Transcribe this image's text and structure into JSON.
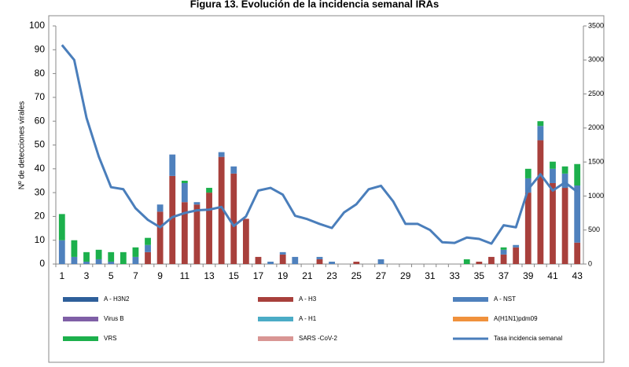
{
  "chart_data": {
    "type": "bar",
    "title": "Figura 13. Evolución de la incidencia semanal IRAs",
    "ylabel": "Nº de detecciones virales",
    "categories": [
      1,
      null,
      3,
      null,
      5,
      null,
      7,
      null,
      9,
      null,
      11,
      null,
      13,
      null,
      15,
      null,
      17,
      null,
      19,
      null,
      21,
      null,
      23,
      null,
      25,
      null,
      27,
      null,
      29,
      null,
      31,
      null,
      33,
      null,
      35,
      null,
      37,
      null,
      39,
      null,
      41,
      null,
      43
    ],
    "ylim": [
      0,
      100
    ],
    "yticks": [
      0,
      10,
      20,
      30,
      40,
      50,
      60,
      70,
      80,
      90,
      100
    ],
    "y2lim": [
      0,
      3500
    ],
    "y2ticks": [
      0,
      500,
      1000,
      1500,
      2000,
      2500,
      3000,
      3500
    ],
    "stacked": true,
    "series": [
      {
        "name": "A - H3N2",
        "color": "#2e5f9a",
        "values": [
          0,
          0,
          0,
          0,
          0,
          0,
          0,
          0,
          0,
          0,
          0,
          0,
          0,
          0,
          0,
          0,
          0,
          0,
          0,
          0,
          0,
          0,
          0,
          0,
          0,
          0,
          0,
          0,
          0,
          0,
          0,
          0,
          0,
          0,
          0,
          0,
          0,
          0,
          0,
          0,
          0,
          0,
          0
        ]
      },
      {
        "name": "A - H3",
        "color": "#a8403c",
        "values": [
          0,
          0,
          0,
          0,
          0,
          0,
          0,
          5,
          22,
          37,
          26,
          25,
          30,
          45,
          38,
          19,
          3,
          0,
          4,
          0,
          0,
          2,
          0,
          0,
          1,
          0,
          0,
          0,
          0,
          0,
          0,
          0,
          0,
          0,
          1,
          3,
          4,
          7,
          30,
          52,
          34,
          32,
          9
        ]
      },
      {
        "name": "A - NST",
        "color": "#4f81bd",
        "values": [
          10,
          3,
          1,
          2,
          1,
          0,
          3,
          3,
          3,
          9,
          8,
          1,
          0,
          2,
          3,
          0,
          0,
          1,
          1,
          3,
          0,
          1,
          1,
          0,
          0,
          0,
          2,
          0,
          0,
          0,
          0,
          0,
          0,
          0,
          0,
          0,
          2,
          1,
          6,
          6,
          6,
          6,
          24
        ]
      },
      {
        "name": "Virus B",
        "color": "#7f5fa6",
        "values": [
          0,
          0,
          0,
          0,
          0,
          0,
          0,
          0,
          0,
          0,
          0,
          0,
          0,
          0,
          0,
          0,
          0,
          0,
          0,
          0,
          0,
          0,
          0,
          0,
          0,
          0,
          0,
          0,
          0,
          0,
          0,
          0,
          0,
          0,
          0,
          0,
          0,
          0,
          0,
          0,
          0,
          0,
          0
        ]
      },
      {
        "name": "A - H1",
        "color": "#4bacc6",
        "values": [
          0,
          0,
          0,
          0,
          0,
          0,
          0,
          0,
          0,
          0,
          0,
          0,
          0,
          0,
          0,
          0,
          0,
          0,
          0,
          0,
          0,
          0,
          0,
          0,
          0,
          0,
          0,
          0,
          0,
          0,
          0,
          0,
          0,
          0,
          0,
          0,
          0,
          0,
          0,
          0,
          0,
          0,
          0
        ]
      },
      {
        "name": "A(H1N1)pdm09",
        "color": "#f0913c",
        "values": [
          0,
          0,
          0,
          0,
          0,
          0,
          0,
          0,
          0,
          0,
          0,
          0,
          0,
          0,
          0,
          0,
          0,
          0,
          0,
          0,
          0,
          0,
          0,
          0,
          0,
          0,
          0,
          0,
          0,
          0,
          0,
          0,
          0,
          0,
          0,
          0,
          0,
          0,
          0,
          0,
          0,
          0,
          0
        ]
      },
      {
        "name": "VRS",
        "color": "#1cb04c",
        "values": [
          11,
          7,
          4,
          4,
          4,
          5,
          4,
          3,
          0,
          0,
          1,
          0,
          2,
          0,
          0,
          0,
          0,
          0,
          0,
          0,
          0,
          0,
          0,
          0,
          0,
          0,
          0,
          0,
          0,
          0,
          0,
          0,
          0,
          2,
          0,
          0,
          1,
          0,
          4,
          2,
          3,
          3,
          9
        ]
      },
      {
        "name": "SARS -CoV-2",
        "color": "#d99694",
        "values": [
          0,
          0,
          0,
          0,
          0,
          0,
          0,
          0,
          0,
          0,
          0,
          0,
          0,
          0,
          0,
          0,
          0,
          0,
          0,
          0,
          0,
          0,
          0,
          0,
          0,
          0,
          0,
          0,
          0,
          0,
          0,
          0,
          0,
          0,
          0,
          0,
          0,
          0,
          0,
          0,
          0,
          0,
          0
        ]
      },
      {
        "name": "Tasa incidencia semanal",
        "color": "#4a7ebb",
        "type": "line",
        "axis": "y2",
        "values": [
          3220,
          3000,
          2150,
          1580,
          1130,
          1100,
          820,
          650,
          540,
          690,
          750,
          790,
          800,
          840,
          560,
          700,
          1080,
          1120,
          1020,
          710,
          660,
          590,
          530,
          760,
          880,
          1100,
          1150,
          920,
          590,
          590,
          500,
          320,
          310,
          390,
          370,
          300,
          570,
          540,
          1100,
          1320,
          1080,
          1200,
          1060
        ]
      }
    ]
  }
}
